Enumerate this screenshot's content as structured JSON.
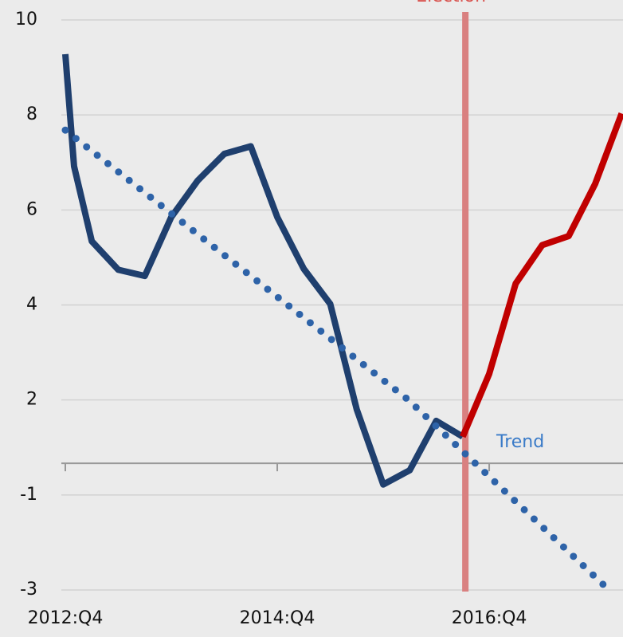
{
  "chart_data": {
    "type": "line",
    "xlim": [
      -0.15,
      21.05
    ],
    "xticks": [
      {
        "value": 0,
        "label": "2012:Q4"
      },
      {
        "value": 8,
        "label": "2014:Q4"
      },
      {
        "value": 16,
        "label": "2016:Q4"
      }
    ],
    "ylim": [
      -3,
      10
    ],
    "yticks": [
      10,
      8,
      6,
      4,
      2,
      -1,
      -3
    ],
    "grid": true,
    "series": [
      {
        "color": "#1f3f6e",
        "x": [
          0,
          0.33,
          1,
          2,
          3,
          4,
          5,
          6,
          7,
          8,
          9,
          10,
          11,
          12,
          13,
          14,
          15
        ],
        "values": [
          9.28,
          6.92,
          5.34,
          4.74,
          4.61,
          5.85,
          6.62,
          7.18,
          7.34,
          5.85,
          4.76,
          4.02,
          1.7,
          -0.67,
          -0.22,
          1.34,
          0.84
        ]
      },
      {
        "color": "#c00000",
        "x": [
          15,
          16,
          17,
          18,
          19,
          20,
          21
        ],
        "values": [
          0.84,
          2.55,
          4.45,
          5.26,
          5.45,
          6.55,
          8.03
        ]
      },
      {
        "name": "Trend",
        "color": "#2e63a8",
        "style": "dotted",
        "x": [
          0,
          12.95,
          20.5
        ],
        "values": [
          7.68,
          2,
          -2.99
        ]
      }
    ],
    "annotations": [
      {
        "text": "Election",
        "x": 15.1,
        "color": "#d98080"
      }
    ]
  }
}
